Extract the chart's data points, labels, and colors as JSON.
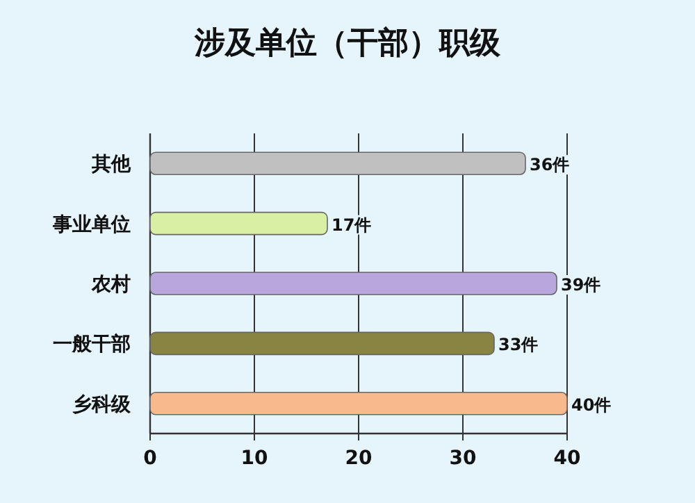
{
  "chart_data": {
    "type": "bar",
    "orientation": "horizontal",
    "title": "涉及单位（干部）职级",
    "categories": [
      "其他",
      "事业单位",
      "农村",
      "一般干部",
      "乡科级"
    ],
    "values": [
      36,
      17,
      39,
      33,
      40
    ],
    "colors": [
      "#c0c0c0",
      "#d8efa4",
      "#b9a6dc",
      "#8a8442",
      "#f8b98c"
    ],
    "value_labels": [
      "36件",
      "17件",
      "39件",
      "33件",
      "40件"
    ],
    "xlim": [
      0,
      40
    ],
    "xticks": [
      0,
      10,
      20,
      30,
      40
    ],
    "grid": "x"
  }
}
